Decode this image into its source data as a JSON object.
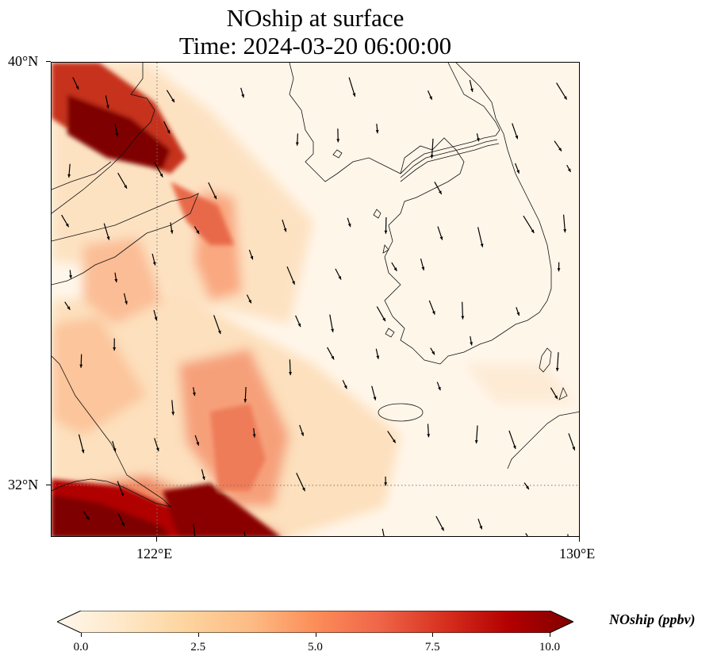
{
  "title": {
    "line1": "NOship at surface",
    "line2": "Time: 2024-03-20 06:00:00"
  },
  "map": {
    "variable": "NOship",
    "level": "surface",
    "lat_range": [
      31.0,
      40.0
    ],
    "lon_range": [
      120.0,
      130.0
    ],
    "lat_ticks": [
      {
        "value": 40,
        "label": "40°N"
      },
      {
        "value": 32,
        "label": "32°N"
      }
    ],
    "lon_ticks": [
      {
        "value": 122,
        "label": "122°E"
      },
      {
        "value": 130,
        "label": "130°E"
      }
    ],
    "gridlines": "dotted at 122°E and 32°N",
    "colormap": "OrRd",
    "features": [
      "coastlines",
      "DMZ border",
      "wind vectors"
    ]
  },
  "colorbar": {
    "label": "NOship (ppbv)",
    "min": 0.0,
    "max": 10.0,
    "extend": "both",
    "ticks": [
      "0.0",
      "2.5",
      "5.0",
      "7.5",
      "10.0"
    ],
    "tick_values": [
      0.0,
      2.5,
      5.0,
      7.5,
      10.0
    ],
    "colors": [
      "#fff7ec",
      "#fee8c8",
      "#fdd49e",
      "#fdbb84",
      "#fc8d59",
      "#ef6548",
      "#d7301f",
      "#b30000",
      "#7f0000"
    ]
  }
}
